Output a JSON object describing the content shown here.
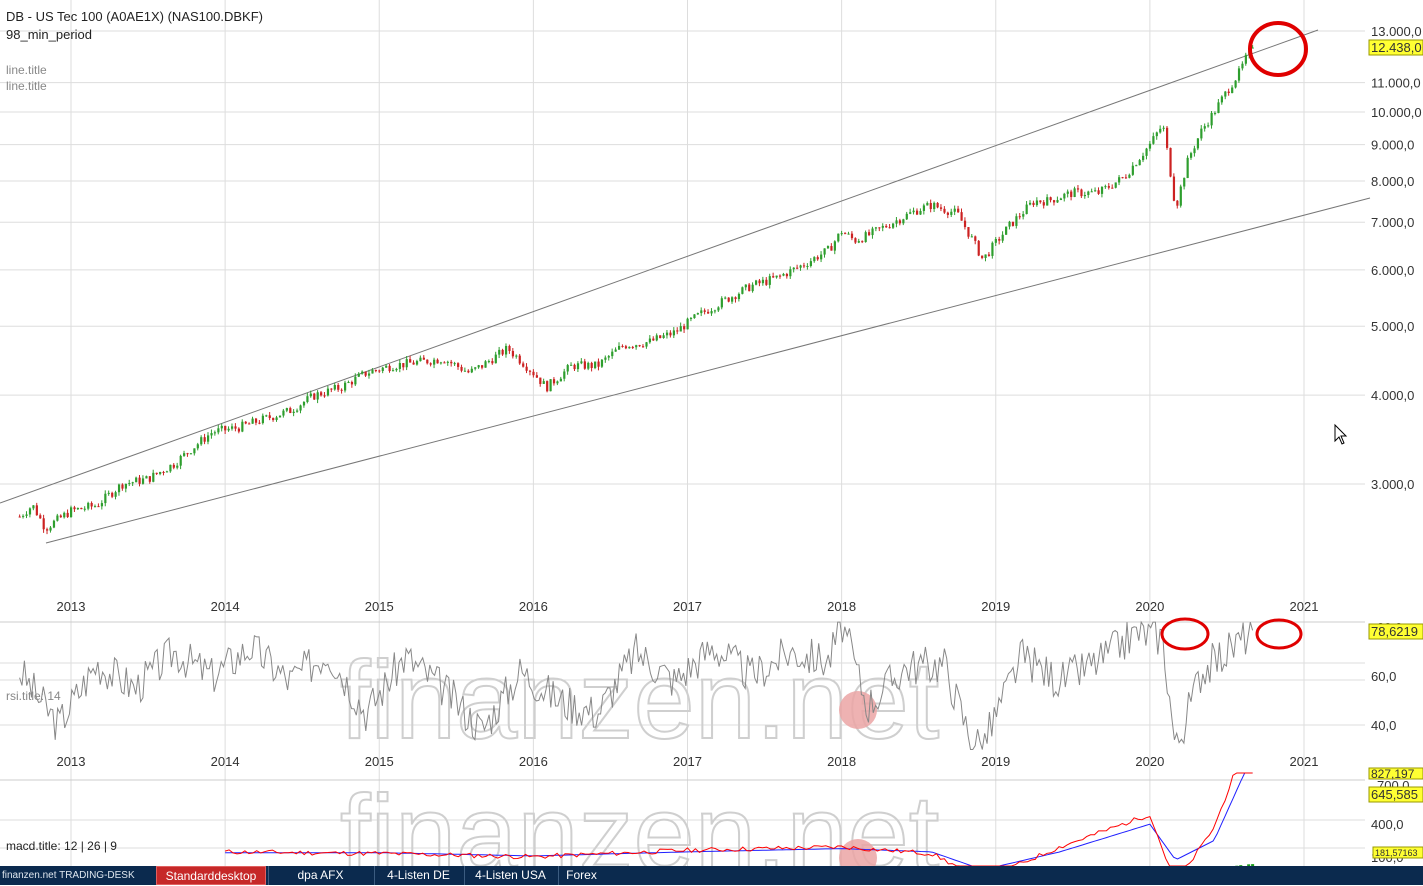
{
  "header": {
    "title": "DB - US Tec 100 (A0AE1X) (NAS100.DBKF)",
    "period": "98_min_period",
    "line_title_1": "line.title",
    "line_title_2": "line.title"
  },
  "price_panel": {
    "y_ticks": [
      "13.000,0",
      "11.000,0",
      "10.000,0",
      "9.000,0",
      "8.000,0",
      "7.000,0",
      "6.000,0",
      "5.000,0",
      "4.000,0",
      "3.000,0"
    ],
    "last_value": "12.438,0"
  },
  "x_axis": {
    "labels": [
      "2013",
      "2014",
      "2015",
      "2016",
      "2017",
      "2018",
      "2019",
      "2020",
      "2021"
    ]
  },
  "rsi_panel": {
    "title": "rsi.title: 14",
    "y_ticks": [
      "60,0",
      "40,0"
    ],
    "last_value": "78,6219",
    "top_tick": "80,0"
  },
  "macd_panel": {
    "title": "macd.title: 12 | 26 | 9",
    "y_ticks": [
      "400,0",
      "100,0"
    ],
    "top_tick": "700,0",
    "value_1": "827,197",
    "value_2": "645,585",
    "histogram_value": "181,57163"
  },
  "watermark": {
    "text": "finanzen.net"
  },
  "taskbar": {
    "logo": "finanzen.net TRADING-DESK",
    "tabs": [
      "Standarddesktop",
      "dpa AFX",
      "4-Listen DE",
      "4-Listen USA",
      "Forex"
    ]
  },
  "colors": {
    "up": "#2e9e2e",
    "down": "#cc2222",
    "highlight": "#ffff33",
    "circle": "#e00000",
    "macd_line": "#ff0000",
    "signal_line": "#2020ff"
  },
  "chart_data": [
    {
      "type": "line",
      "series": [
        {
          "x": [
            "2012-09",
            "2012-10",
            "2012-11",
            "2013-01",
            "2013-03",
            "2013-05",
            "2013-07",
            "2013-09",
            "2013-12",
            "2014-02",
            "2014-04",
            "2014-06",
            "2014-08",
            "2014-10",
            "2014-12",
            "2015-02",
            "2015-04",
            "2015-06",
            "2015-08",
            "2015-09",
            "2015-11",
            "2016-01",
            "2016-02",
            "2016-04",
            "2016-06",
            "2016-08",
            "2016-10",
            "2016-12",
            "2017-02",
            "2017-04",
            "2017-06",
            "2017-08",
            "2017-10",
            "2017-12",
            "2018-01",
            "2018-02",
            "2018-03",
            "2018-05",
            "2018-07",
            "2018-08",
            "2018-10",
            "2018-11",
            "2018-12",
            "2019-02",
            "2019-04",
            "2019-05",
            "2019-07",
            "2019-09",
            "2019-11",
            "2020-01",
            "2020-02",
            "2020-03",
            "2020-04",
            "2020-05",
            "2020-06",
            "2020-07",
            "2020-08",
            "2020-09"
          ],
          "values": [
            2700,
            2800,
            2600,
            2750,
            2800,
            3000,
            3050,
            3200,
            3550,
            3600,
            3700,
            3800,
            4000,
            4100,
            4300,
            4400,
            4450,
            4500,
            4300,
            4400,
            4650,
            4300,
            4100,
            4400,
            4400,
            4700,
            4750,
            4900,
            5200,
            5450,
            5700,
            5850,
            6100,
            6400,
            6800,
            6600,
            6700,
            7000,
            7300,
            7400,
            7200,
            6700,
            6200,
            6900,
            7500,
            7500,
            7700,
            7700,
            8100,
            9000,
            9600,
            7300,
            8600,
            9400,
            10000,
            10700,
            11400,
            12438
          ]
        }
      ],
      "ylim": [
        2500,
        13400
      ],
      "log_scale": true
    },
    {
      "type": "line",
      "series": [
        {
          "x": [
            "2012-09",
            "2012-12",
            "2013-03",
            "2013-06",
            "2013-09",
            "2013-12",
            "2014-03",
            "2014-06",
            "2014-09",
            "2014-12",
            "2015-03",
            "2015-06",
            "2015-09",
            "2015-12",
            "2016-03",
            "2016-06",
            "2016-09",
            "2016-12",
            "2017-03",
            "2017-06",
            "2017-09",
            "2017-12",
            "2018-01",
            "2018-03",
            "2018-06",
            "2018-09",
            "2018-11",
            "2018-12",
            "2019-03",
            "2019-06",
            "2019-09",
            "2019-12",
            "2020-02",
            "2020-03",
            "2020-05",
            "2020-07",
            "2020-09"
          ],
          "values": [
            62,
            40,
            65,
            55,
            70,
            60,
            72,
            58,
            70,
            45,
            68,
            55,
            38,
            62,
            50,
            45,
            70,
            58,
            72,
            60,
            70,
            66,
            82,
            48,
            64,
            65,
            35,
            32,
            68,
            58,
            66,
            78,
            76,
            30,
            62,
            70,
            78.62
          ]
        }
      ],
      "ylim": [
        30,
        80
      ]
    },
    {
      "type": "line",
      "series": [
        {
          "name": "",
          "x": [
            "2014-01",
            "2015-01",
            "2016-01",
            "2017-01",
            "2018-01",
            "2018-08",
            "2018-12",
            "2019-06",
            "2020-01",
            "2020-03",
            "2020-06",
            "2020-09"
          ],
          "values": [
            50,
            40,
            20,
            60,
            80,
            40,
            -120,
            80,
            280,
            -150,
            200,
            827.2
          ]
        },
        {
          "name": "",
          "x": [
            "2014-01",
            "2015-01",
            "2016-01",
            "2017-01",
            "2018-01",
            "2018-08",
            "2018-12",
            "2019-06",
            "2020-01",
            "2020-03",
            "2020-06",
            "2020-09"
          ],
          "values": [
            45,
            45,
            25,
            50,
            70,
            50,
            -60,
            50,
            220,
            0,
            120,
            645.6
          ]
        }
      ],
      "ylim": [
        -300,
        900
      ]
    }
  ]
}
